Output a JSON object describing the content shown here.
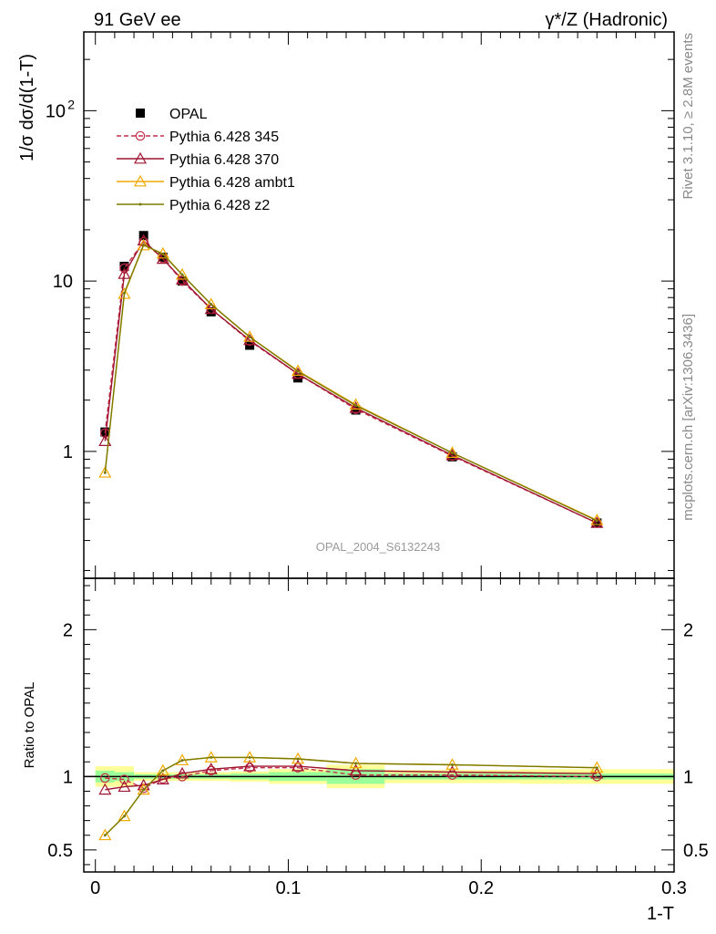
{
  "header": {
    "left_title": "91 GeV ee",
    "right_title": "γ*/Z (Hadronic)"
  },
  "side_labels": {
    "rivet": "Rivet 3.1.10, ≥ 2.8M events",
    "mcplots": "mcplots.cern.ch [arXiv:1306.3436]"
  },
  "analysis_label": "OPAL_2004_S6132243",
  "chart_data": [
    {
      "type": "line",
      "panel": "main",
      "ylabel": "1/σ dσ/d(1-T)",
      "yscale": "log",
      "ylim": [
        0.18,
        290
      ],
      "xlim": [
        -0.006,
        0.3
      ],
      "yticks": [
        {
          "value": 1,
          "label": "1"
        },
        {
          "value": 10,
          "label": "10"
        },
        {
          "value": 100,
          "label": "10",
          "sup": "2"
        }
      ],
      "legend_position": "top-left",
      "x": [
        0.005,
        0.015,
        0.025,
        0.035,
        0.045,
        0.06,
        0.08,
        0.105,
        0.135,
        0.185,
        0.26
      ],
      "data": {
        "name": "OPAL",
        "color": "#000000",
        "values": [
          1.3,
          12.2,
          18.5,
          13.8,
          10.0,
          6.6,
          4.2,
          2.7,
          1.75,
          0.93,
          0.38
        ]
      },
      "series": [
        {
          "name": "Pythia 6.428 345",
          "color": "#c2304a",
          "marker": "circle",
          "dashed": true,
          "values": [
            1.28,
            11.9,
            17.0,
            13.6,
            10.0,
            6.85,
            4.45,
            2.85,
            1.77,
            0.94,
            0.38
          ]
        },
        {
          "name": "Pythia 6.428 370",
          "color": "#9e1531",
          "marker": "triangle",
          "dashed": false,
          "values": [
            1.15,
            11.0,
            17.3,
            13.5,
            10.2,
            6.85,
            4.5,
            2.85,
            1.8,
            0.95,
            0.38
          ]
        },
        {
          "name": "Pythia 6.428 ambt1",
          "color": "#f2a900",
          "marker": "triangle",
          "dashed": false,
          "values": [
            0.75,
            8.4,
            16.2,
            14.5,
            10.9,
            7.3,
            4.7,
            2.97,
            1.88,
            0.98,
            0.395
          ]
        },
        {
          "name": "Pythia 6.428 z2",
          "color": "#7a7a00",
          "marker": "dot",
          "dashed": false,
          "values": [
            0.75,
            8.5,
            16.3,
            14.4,
            10.9,
            7.3,
            4.7,
            2.95,
            1.86,
            0.98,
            0.392
          ]
        }
      ]
    },
    {
      "type": "line",
      "panel": "ratio",
      "ylabel": "Ratio to OPAL",
      "xlabel": "1-T",
      "ylim": [
        0.35,
        2.35
      ],
      "xlim": [
        -0.006,
        0.3
      ],
      "xticks": [
        {
          "value": 0,
          "label": "0"
        },
        {
          "value": 0.1,
          "label": "0.1"
        },
        {
          "value": 0.2,
          "label": "0.2"
        },
        {
          "value": 0.3,
          "label": "0.3"
        }
      ],
      "yticks": [
        {
          "value": 0.5,
          "label": "0.5"
        },
        {
          "value": 1,
          "label": "1"
        },
        {
          "value": 2,
          "label": "2"
        }
      ],
      "bin_edges": [
        0,
        0.01,
        0.02,
        0.03,
        0.04,
        0.05,
        0.07,
        0.09,
        0.12,
        0.15,
        0.22,
        0.3
      ],
      "band_inner": [
        0.04,
        0.03,
        0.015,
        0.015,
        0.015,
        0.015,
        0.02,
        0.03,
        0.05,
        0.02,
        0.02
      ],
      "band_outer": [
        0.07,
        0.07,
        0.03,
        0.03,
        0.03,
        0.03,
        0.035,
        0.05,
        0.08,
        0.045,
        0.05
      ],
      "x": [
        0.005,
        0.015,
        0.025,
        0.035,
        0.045,
        0.06,
        0.08,
        0.105,
        0.135,
        0.185,
        0.26
      ],
      "series": [
        {
          "name": "Pythia 6.428 345",
          "color": "#c2304a",
          "marker": "circle",
          "dashed": true,
          "values": [
            0.99,
            0.98,
            0.92,
            0.985,
            1.0,
            1.04,
            1.06,
            1.06,
            1.01,
            1.01,
            1.0
          ]
        },
        {
          "name": "Pythia 6.428 370",
          "color": "#9e1531",
          "marker": "triangle",
          "dashed": false,
          "values": [
            0.91,
            0.93,
            0.94,
            0.98,
            1.02,
            1.05,
            1.07,
            1.07,
            1.04,
            1.03,
            1.02
          ]
        },
        {
          "name": "Pythia 6.428 ambt1",
          "color": "#f2a900",
          "marker": "triangle",
          "dashed": false,
          "values": [
            0.6,
            0.73,
            0.91,
            1.04,
            1.11,
            1.13,
            1.13,
            1.12,
            1.09,
            1.08,
            1.06
          ]
        },
        {
          "name": "Pythia 6.428 z2",
          "color": "#7a7a00",
          "marker": "dot",
          "dashed": false,
          "values": [
            0.6,
            0.73,
            0.91,
            1.04,
            1.11,
            1.13,
            1.13,
            1.12,
            1.09,
            1.08,
            1.06
          ]
        }
      ]
    }
  ]
}
